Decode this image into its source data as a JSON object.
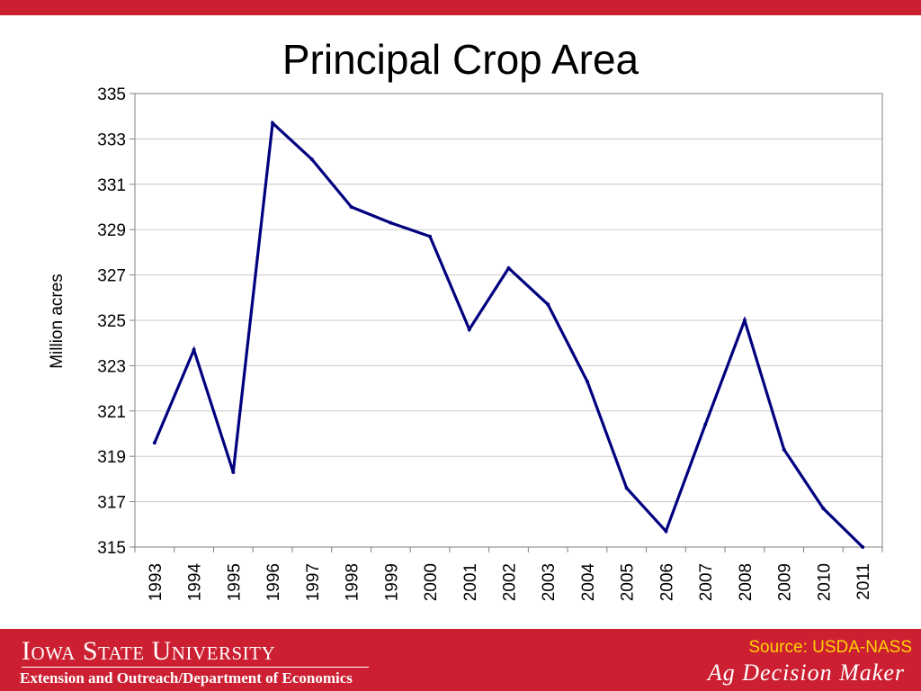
{
  "header": {
    "title": "Principal Crop Area"
  },
  "chart_data": {
    "type": "line",
    "title": "Principal Crop Area",
    "xlabel": "",
    "ylabel": "Million acres",
    "ylim": [
      315,
      335
    ],
    "yticks": [
      335,
      333,
      331,
      329,
      327,
      325,
      323,
      321,
      319,
      317,
      315
    ],
    "categories": [
      "1993",
      "1994",
      "1995",
      "1996",
      "1997",
      "1998",
      "1999",
      "2000",
      "2001",
      "2002",
      "2003",
      "2004",
      "2005",
      "2006",
      "2007",
      "2008",
      "2009",
      "2010",
      "2011"
    ],
    "series": [
      {
        "values": [
          319.6,
          323.7,
          318.3,
          333.7,
          332.1,
          330.0,
          329.3,
          328.7,
          324.6,
          327.3,
          325.7,
          322.3,
          317.6,
          315.7,
          320.4,
          325.0,
          319.3,
          316.7,
          315.0
        ]
      }
    ],
    "grid": true,
    "legend": "none",
    "line_color": "#00007f"
  },
  "footer": {
    "university": "Iowa State University",
    "department": "Extension and Outreach/Department of Economics",
    "source": "Source: USDA-NASS",
    "brand": "Ag Decision Maker"
  },
  "colors": {
    "accent": "#cc1f32",
    "source_text": "#ffd500"
  }
}
